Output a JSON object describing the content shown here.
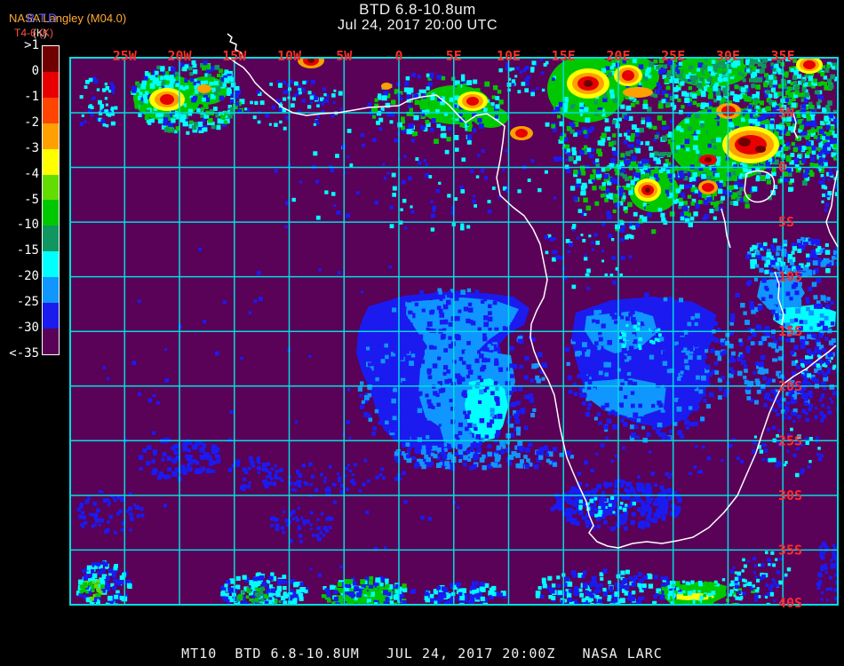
{
  "title": {
    "line1": "BTD 6.8-10.8um",
    "line2": "Jul 24, 2017 20:00 UTC"
  },
  "header": {
    "org": "NASA Langley (M04.0)",
    "product_overlay": "B.T.D",
    "scale_label": "T4-6 (K)",
    "scale_overlay": "(K)"
  },
  "legend": {
    "labels": [
      ">1",
      "0",
      "-1",
      "-2",
      "-3",
      "-4",
      "-5",
      "-10",
      "-15",
      "-20",
      "-25",
      "-30",
      "<-35"
    ],
    "colors": [
      "#700000",
      "#e80000",
      "#ff4500",
      "#ffa000",
      "#ffff00",
      "#63dd00",
      "#00c800",
      "#109660",
      "#00ffff",
      "#0f96ff",
      "#1b1bf0",
      "#5a0158"
    ]
  },
  "map": {
    "background": "#5a0158",
    "grid_color": "#00dede",
    "coast_color": "#ffffff",
    "label_color": "#ff2c2c",
    "lon_labels": [
      "25W",
      "20W",
      "15W",
      "10W",
      "5W",
      "0",
      "5E",
      "10E",
      "15E",
      "20E",
      "25E",
      "30E",
      "35E"
    ],
    "lat_labels": [
      "5N",
      "0",
      "5S",
      "10S",
      "15S",
      "20S",
      "25S",
      "30S",
      "35S",
      "40S"
    ]
  },
  "footer": {
    "text": "MT10  BTD 6.8-10.8UM   JUL 24, 2017 20:00Z   NASA LARC"
  }
}
